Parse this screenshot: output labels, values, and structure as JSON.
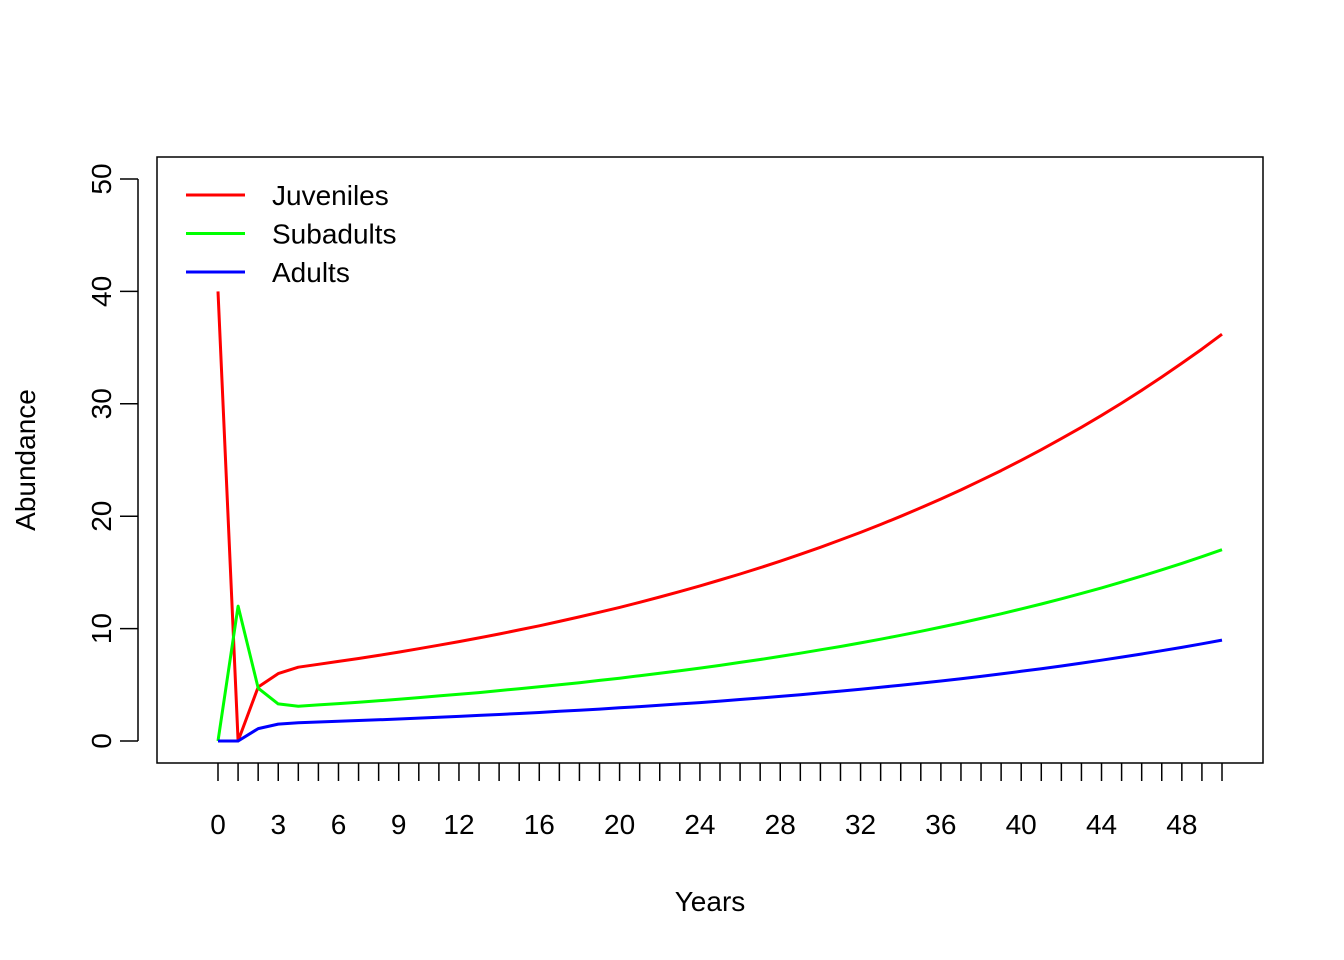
{
  "chart_data": {
    "type": "line",
    "title": "",
    "xlabel": "Years",
    "ylabel": "Abundance",
    "xlim": [
      0,
      50
    ],
    "ylim": [
      0,
      50
    ],
    "grid": false,
    "legend_position": "top-left",
    "x_tick_labels": [
      "0",
      "3",
      "6",
      "9",
      "12",
      "16",
      "20",
      "24",
      "28",
      "32",
      "36",
      "40",
      "44",
      "48"
    ],
    "x_tick_positions": [
      0,
      3,
      6,
      9,
      12,
      16,
      20,
      24,
      28,
      32,
      36,
      40,
      44,
      48
    ],
    "x_minor_ticks_every": 1,
    "y_tick_labels": [
      "0",
      "10",
      "20",
      "30",
      "40",
      "50"
    ],
    "y_tick_positions": [
      0,
      10,
      20,
      30,
      40,
      50
    ],
    "x": [
      0,
      1,
      2,
      3,
      4,
      5,
      6,
      7,
      8,
      9,
      10,
      11,
      12,
      13,
      14,
      15,
      16,
      17,
      18,
      19,
      20,
      21,
      22,
      23,
      24,
      25,
      26,
      27,
      28,
      29,
      30,
      31,
      32,
      33,
      34,
      35,
      36,
      37,
      38,
      39,
      40,
      41,
      42,
      43,
      44,
      45,
      46,
      47,
      48,
      49,
      50
    ],
    "series": [
      {
        "name": "Juveniles",
        "color": "#ff0000",
        "values": [
          40,
          0,
          4.8,
          6.0,
          6.57,
          6.82,
          7.08,
          7.34,
          7.62,
          7.91,
          8.21,
          8.52,
          8.84,
          9.17,
          9.52,
          9.88,
          10.25,
          10.64,
          11.04,
          11.46,
          11.89,
          12.34,
          12.81,
          13.29,
          13.8,
          14.32,
          14.86,
          15.42,
          16.0,
          16.61,
          17.23,
          17.89,
          18.56,
          19.26,
          19.99,
          20.75,
          21.53,
          22.34,
          23.19,
          24.06,
          24.97,
          25.92,
          26.9,
          27.91,
          28.97,
          30.06,
          31.2,
          32.38,
          33.6,
          34.87,
          36.19
        ]
      },
      {
        "name": "Subadults",
        "color": "#00ff00",
        "values": [
          0,
          12,
          4.7,
          3.3,
          3.09,
          3.21,
          3.33,
          3.45,
          3.58,
          3.72,
          3.86,
          4.01,
          4.16,
          4.31,
          4.48,
          4.65,
          4.82,
          5.0,
          5.19,
          5.39,
          5.59,
          5.81,
          6.02,
          6.25,
          6.49,
          6.73,
          6.99,
          7.25,
          7.53,
          7.81,
          8.11,
          8.41,
          8.73,
          9.06,
          9.4,
          9.76,
          10.13,
          10.51,
          10.91,
          11.32,
          11.75,
          12.19,
          12.65,
          13.13,
          13.62,
          14.14,
          14.67,
          15.23,
          15.8,
          16.4,
          17.02
        ]
      },
      {
        "name": "Adults",
        "color": "#0000ff",
        "values": [
          0,
          0,
          1.1,
          1.5,
          1.63,
          1.69,
          1.76,
          1.82,
          1.89,
          1.96,
          2.04,
          2.11,
          2.19,
          2.28,
          2.36,
          2.45,
          2.54,
          2.64,
          2.74,
          2.84,
          2.95,
          3.06,
          3.18,
          3.3,
          3.42,
          3.55,
          3.69,
          3.83,
          3.97,
          4.12,
          4.28,
          4.44,
          4.61,
          4.78,
          4.96,
          5.15,
          5.34,
          5.54,
          5.75,
          5.97,
          6.2,
          6.43,
          6.67,
          6.93,
          7.19,
          7.46,
          7.74,
          8.03,
          8.33,
          8.65,
          8.98
        ]
      }
    ]
  }
}
